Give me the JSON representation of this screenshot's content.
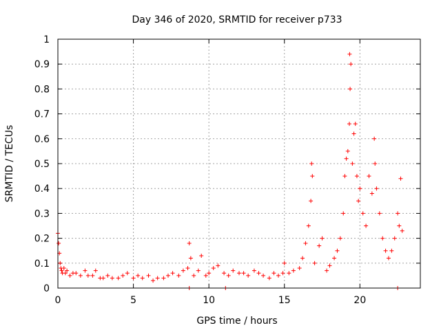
{
  "chart_data": {
    "type": "scatter",
    "title": "Day 346 of 2020, SRMTID for receiver p733",
    "xlabel": "GPS time / hours",
    "ylabel": "SRMTID / TECUs",
    "xlim": [
      0,
      24
    ],
    "ylim": [
      0,
      1
    ],
    "xticks": [
      0,
      5,
      10,
      15,
      20
    ],
    "xtick_labels": [
      "0",
      "5",
      "10",
      "15",
      "20"
    ],
    "yticks": [
      0,
      0.1,
      0.2,
      0.3,
      0.4,
      0.5,
      0.6,
      0.7,
      0.8,
      0.9,
      1
    ],
    "ytick_labels": [
      "0",
      "0.1",
      "0.2",
      "0.3",
      "0.4",
      "0.5",
      "0.6",
      "0.7",
      "0.8",
      "0.9",
      "1"
    ],
    "grid": true,
    "marker": "+",
    "color": "#ff0000",
    "series": [
      {
        "name": "SRMTID",
        "x": [
          0.0,
          0.05,
          0.1,
          0.15,
          0.2,
          0.25,
          0.3,
          0.4,
          0.5,
          0.6,
          0.8,
          1.0,
          1.2,
          1.5,
          1.8,
          2.0,
          2.3,
          2.5,
          2.8,
          3.0,
          3.3,
          3.6,
          4.0,
          4.3,
          4.6,
          5.0,
          5.3,
          5.6,
          6.0,
          6.3,
          6.6,
          7.0,
          7.3,
          7.6,
          8.0,
          8.3,
          8.6,
          8.7,
          8.8,
          9.0,
          9.3,
          9.5,
          9.8,
          10.0,
          10.3,
          10.6,
          11.0,
          11.3,
          11.6,
          12.0,
          12.3,
          12.6,
          13.0,
          13.3,
          13.6,
          14.0,
          14.3,
          14.6,
          14.9,
          15.0,
          15.3,
          15.6,
          16.0,
          16.2,
          16.4,
          16.6,
          16.75,
          16.8,
          16.85,
          17.0,
          17.3,
          17.5,
          17.8,
          18.0,
          18.3,
          18.5,
          18.7,
          18.9,
          19.0,
          19.1,
          19.2,
          19.3,
          19.32,
          19.35,
          19.4,
          19.5,
          19.6,
          19.7,
          19.8,
          19.9,
          20.0,
          20.2,
          20.4,
          20.6,
          20.8,
          20.95,
          21.0,
          21.1,
          21.3,
          21.5,
          21.7,
          21.9,
          22.1,
          22.3,
          22.5,
          22.6,
          22.7,
          22.8,
          22.5,
          11.1,
          8.7
        ],
        "y": [
          0.22,
          0.18,
          0.14,
          0.1,
          0.08,
          0.07,
          0.06,
          0.08,
          0.06,
          0.07,
          0.05,
          0.06,
          0.06,
          0.05,
          0.07,
          0.05,
          0.05,
          0.07,
          0.04,
          0.04,
          0.05,
          0.04,
          0.04,
          0.05,
          0.06,
          0.04,
          0.05,
          0.04,
          0.05,
          0.03,
          0.04,
          0.04,
          0.05,
          0.06,
          0.05,
          0.07,
          0.08,
          0.18,
          0.12,
          0.05,
          0.07,
          0.13,
          0.05,
          0.06,
          0.08,
          0.09,
          0.06,
          0.05,
          0.07,
          0.06,
          0.06,
          0.05,
          0.07,
          0.06,
          0.05,
          0.04,
          0.06,
          0.05,
          0.06,
          0.1,
          0.06,
          0.07,
          0.08,
          0.12,
          0.18,
          0.25,
          0.35,
          0.5,
          0.45,
          0.1,
          0.17,
          0.2,
          0.07,
          0.09,
          0.12,
          0.15,
          0.2,
          0.3,
          0.45,
          0.52,
          0.55,
          0.66,
          0.94,
          0.8,
          0.9,
          0.5,
          0.62,
          0.66,
          0.45,
          0.35,
          0.4,
          0.3,
          0.25,
          0.45,
          0.38,
          0.6,
          0.5,
          0.4,
          0.3,
          0.2,
          0.15,
          0.12,
          0.15,
          0.2,
          0.3,
          0.25,
          0.44,
          0.23,
          0.0,
          0.0,
          0.0
        ]
      }
    ]
  }
}
